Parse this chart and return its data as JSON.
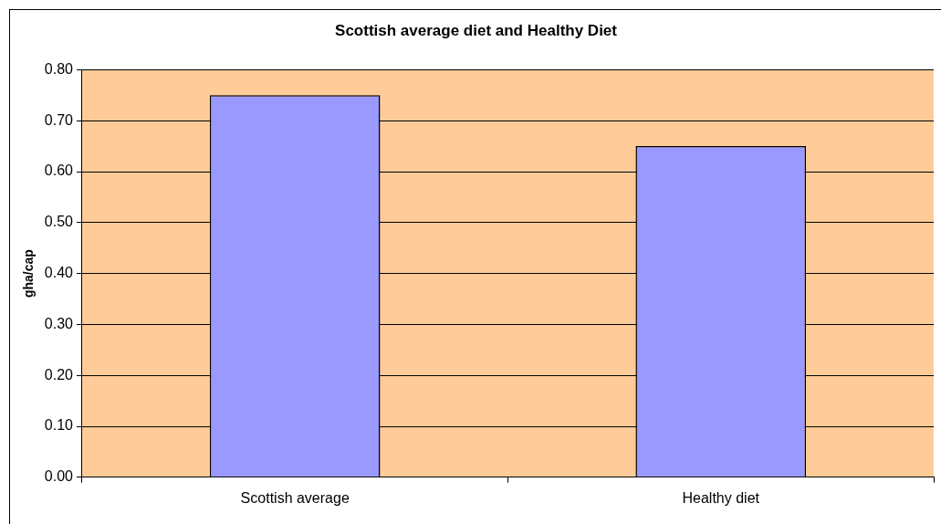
{
  "chart_data": {
    "type": "bar",
    "title": "Scottish average diet and Healthy Diet",
    "ylabel": "gha/cap",
    "categories": [
      "Scottish average",
      "Healthy diet"
    ],
    "values": [
      0.75,
      0.65
    ],
    "color": "#9999ff",
    "ylim": [
      0,
      0.8
    ],
    "yticks": [
      {
        "value": 0,
        "label": "0.00"
      },
      {
        "value": 0.1,
        "label": "0.10"
      },
      {
        "value": 0.2,
        "label": "0.20"
      },
      {
        "value": 0.3,
        "label": "0.30"
      },
      {
        "value": 0.4,
        "label": "0.40"
      },
      {
        "value": 0.5,
        "label": "0.50"
      },
      {
        "value": 0.6,
        "label": "0.60"
      },
      {
        "value": 0.7,
        "label": "0.70"
      },
      {
        "value": 0.8,
        "label": "0.80"
      }
    ],
    "grid": "y",
    "legend": false
  }
}
